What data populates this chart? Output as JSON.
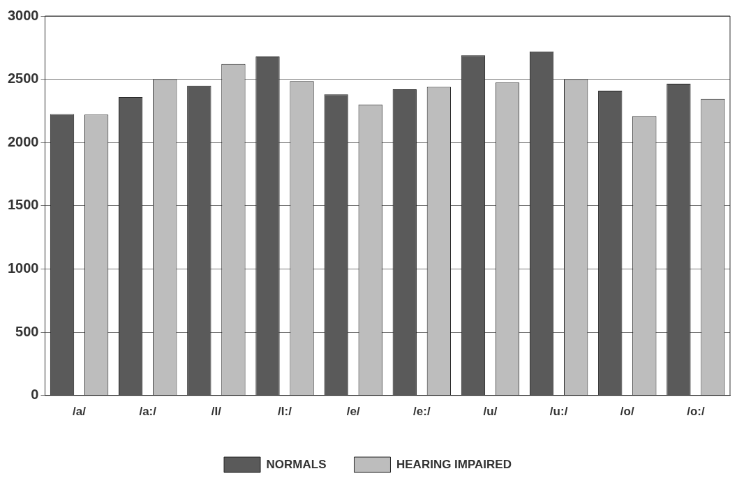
{
  "chart_data": {
    "type": "bar",
    "categories": [
      "/a/",
      "/a:/",
      "/I/",
      "/I:/",
      "/e/",
      "/e:/",
      "/u/",
      "/u:/",
      "/o/",
      "/o:/"
    ],
    "series": [
      {
        "name": "NORMALS",
        "color": "#5a5a5a",
        "values": [
          2225,
          2360,
          2450,
          2680,
          2380,
          2420,
          2690,
          2720,
          2410,
          2465
        ]
      },
      {
        "name": "HEARING IMPAIRED",
        "color": "#bdbdbd",
        "values": [
          2220,
          2500,
          2620,
          2485,
          2300,
          2440,
          2475,
          2500,
          2210,
          2345
        ]
      }
    ],
    "ylim": [
      0,
      3000
    ],
    "yticks": [
      0,
      500,
      1000,
      1500,
      2000,
      2500,
      3000
    ],
    "grid": "y",
    "legend": "bottom"
  }
}
